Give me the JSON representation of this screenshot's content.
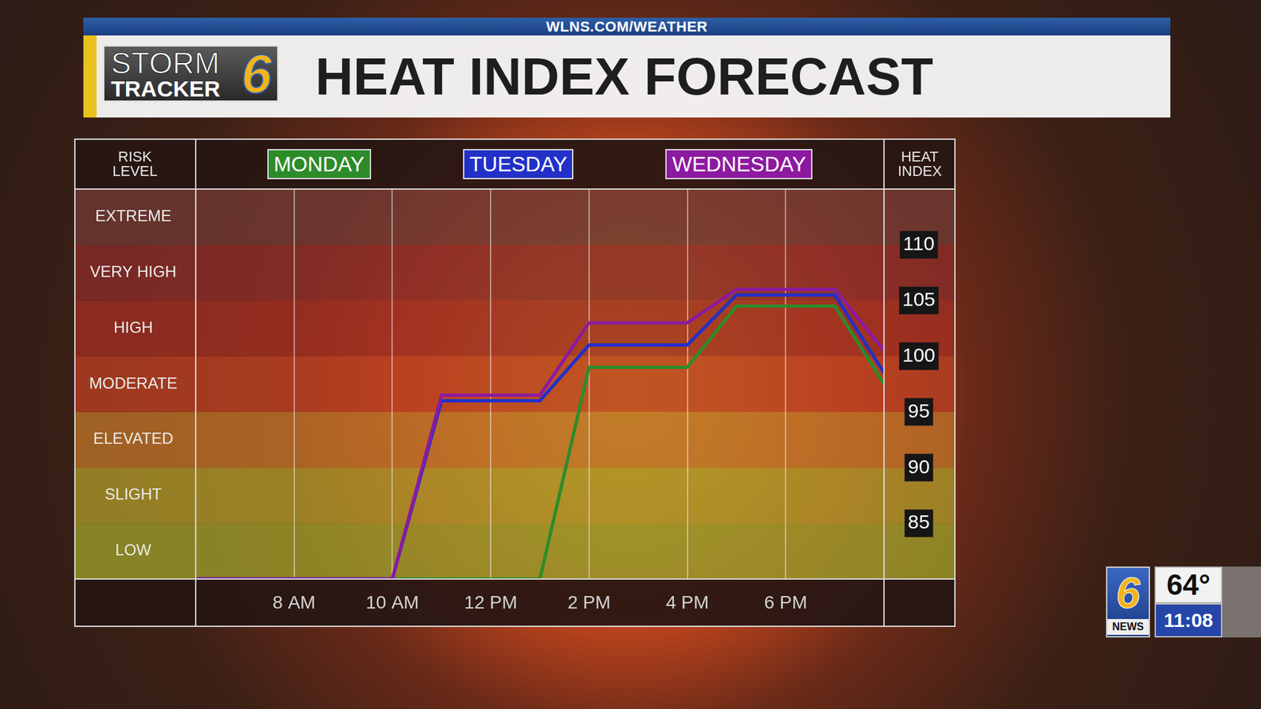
{
  "header": {
    "url": "WLNS.COM/WEATHER",
    "logo": {
      "line1": "STORM",
      "line2": "TRACKER",
      "number": "6"
    }
  },
  "chart_data": {
    "type": "line",
    "title": "HEAT INDEX FORECAST",
    "ylabel": "RISK LEVEL",
    "y2label": "HEAT INDEX",
    "x": [
      6,
      10,
      11,
      13,
      14,
      16,
      17,
      19,
      20
    ],
    "xlim": [
      6,
      20
    ],
    "xticks": [
      {
        "value": 8,
        "label": "8 AM"
      },
      {
        "value": 10,
        "label": "10 AM"
      },
      {
        "value": 12,
        "label": "12 PM"
      },
      {
        "value": 14,
        "label": "2 PM"
      },
      {
        "value": 16,
        "label": "4 PM"
      },
      {
        "value": 18,
        "label": "6 PM"
      }
    ],
    "ylim": [
      80,
      115
    ],
    "yticks": [
      {
        "value": 82.5,
        "label": "LOW"
      },
      {
        "value": 87.5,
        "label": "SLIGHT"
      },
      {
        "value": 92.5,
        "label": "ELEVATED"
      },
      {
        "value": 97.5,
        "label": "MODERATE"
      },
      {
        "value": 102.5,
        "label": "HIGH"
      },
      {
        "value": 107.5,
        "label": "VERY HIGH"
      },
      {
        "value": 112.5,
        "label": "EXTREME"
      }
    ],
    "y2lim": [
      80,
      115
    ],
    "y2ticks": [
      85,
      90,
      95,
      100,
      105,
      110
    ],
    "series": [
      {
        "name": "MONDAY",
        "color": "#2e8b2a",
        "axis": "y2",
        "values": [
          80,
          80,
          80,
          80,
          99,
          99,
          104.5,
          104.5,
          97.5
        ]
      },
      {
        "name": "TUESDAY",
        "color": "#2230c8",
        "axis": "y2",
        "values": [
          80,
          80,
          96,
          96,
          101,
          101,
          105.5,
          105.5,
          98.5
        ]
      },
      {
        "name": "WEDNESDAY",
        "color": "#8c1aa0",
        "axis": "y2",
        "values": [
          80,
          80,
          96.5,
          96.5,
          103,
          103,
          106,
          106,
          100.5
        ]
      }
    ],
    "legend": "top",
    "grid": "x"
  },
  "station_bug": {
    "logo": "6",
    "network": "NEWS",
    "temperature": "64°",
    "time": "11:08"
  }
}
